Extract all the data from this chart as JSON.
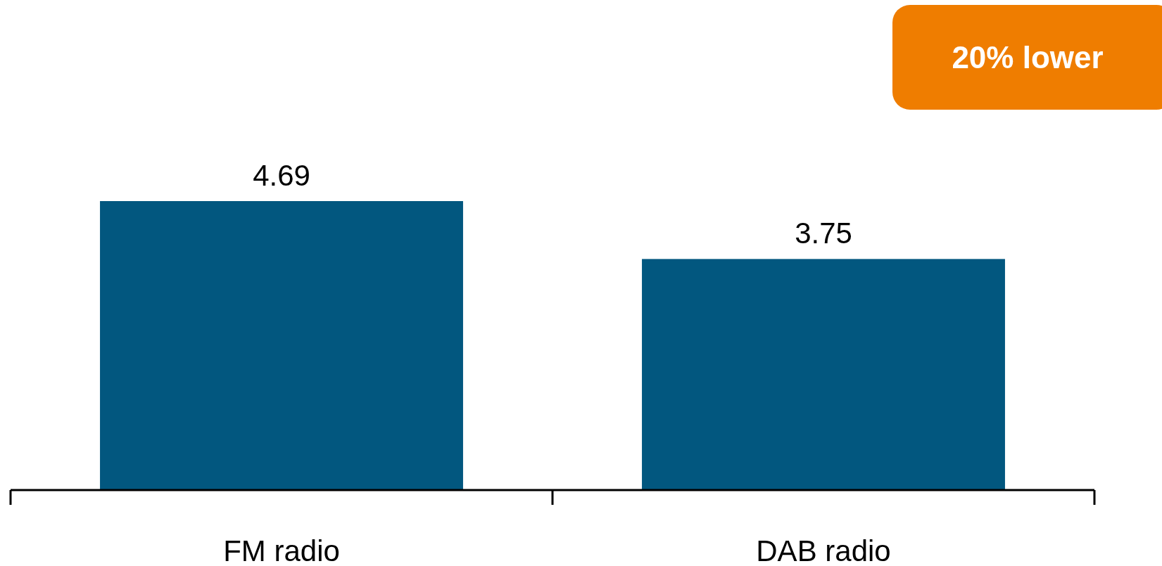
{
  "chart_data": {
    "type": "bar",
    "categories": [
      "FM radio",
      "DAB radio"
    ],
    "values": [
      4.69,
      3.75
    ],
    "color": "#02577f",
    "data_labels": true,
    "annotations": [
      "20% lower"
    ]
  }
}
